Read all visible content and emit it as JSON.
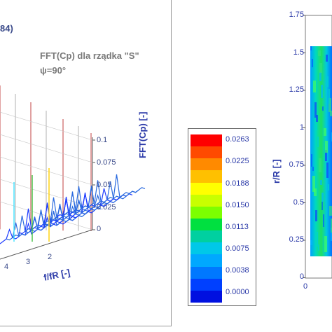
{
  "left_panel": {
    "corner_text": "84)",
    "title": "FFT(Cp) dla rządka \"S\"",
    "subtitle": "ψ=90°"
  },
  "chart_data": [
    {
      "type": "surface-3d-waterfall",
      "title": "FFT(Cp) dla rządka \"S\"",
      "subtitle": "ψ=90°",
      "zlabel": "FFT(Cp) [-]",
      "xlabel": "f/fR [-]",
      "z_ticks": [
        "0",
        "0.025",
        "0.05",
        "0.075",
        "0.1"
      ],
      "x_ticks": [
        "4",
        "3",
        "2"
      ],
      "zlim": [
        0,
        0.1
      ]
    },
    {
      "type": "heatmap-legend",
      "levels": [
        "0.0263",
        "0.0225",
        "0.0188",
        "0.0150",
        "0.0113",
        "0.0075",
        "0.0038",
        "0.0000"
      ],
      "colors": [
        "#ff0000",
        "#ff4a00",
        "#ff8a00",
        "#ffc000",
        "#ffff00",
        "#c8ff00",
        "#7cff00",
        "#00e040",
        "#00d0a0",
        "#00c8e8",
        "#00a8ff",
        "#0078ff",
        "#0040ff",
        "#0010e0"
      ]
    },
    {
      "type": "heatmap",
      "ylabel": "r/R [-]",
      "y_ticks": [
        "1.75",
        "1.5",
        "1.25",
        "1",
        "0.75",
        "0.5",
        "0.25",
        "0"
      ],
      "x_ticks": [
        "0"
      ],
      "ylim": [
        0,
        1.75
      ],
      "data_y_range": [
        0.15,
        1.55
      ]
    }
  ]
}
